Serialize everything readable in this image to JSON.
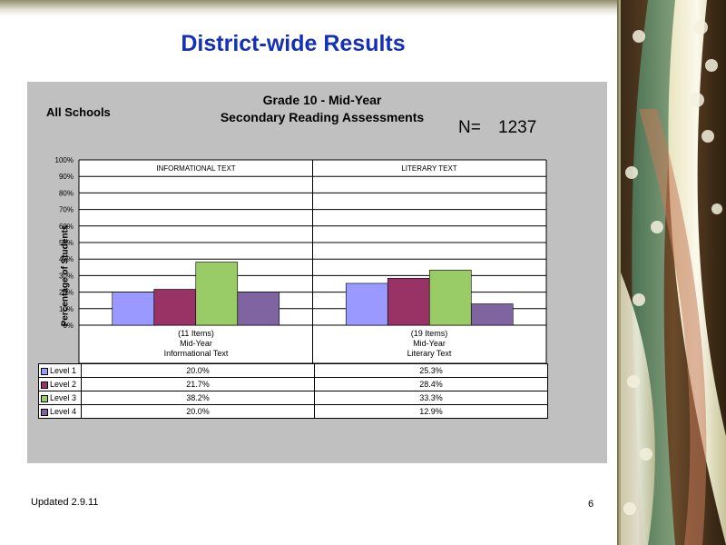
{
  "slide": {
    "title": "District-wide Results",
    "footer_updated": "Updated  2.9.11",
    "page_number": "6"
  },
  "chart_data": {
    "type": "bar",
    "title_line1": "Grade 10 - Mid-Year",
    "title_line2": "Secondary Reading Assessments",
    "school_label": "All Schools",
    "n_label": "N=",
    "n_value": "1237",
    "ylabel": "Percentage of Students",
    "ylim": [
      0,
      100
    ],
    "yticks": [
      "0%",
      "10%",
      "20%",
      "30%",
      "40%",
      "50%",
      "60%",
      "70%",
      "80%",
      "90%",
      "100%"
    ],
    "grid": true,
    "category_headers": [
      "INFORMATIONAL TEXT",
      "LITERARY TEXT"
    ],
    "categories": [
      [
        "(11 Items)",
        "Mid-Year",
        "Informational Text"
      ],
      [
        "(19 Items)",
        "Mid-Year",
        "Literary Text"
      ]
    ],
    "series": [
      {
        "name": "Level 1",
        "color": "#9999ff",
        "values": [
          20.0,
          25.3
        ],
        "labels": [
          "20.0%",
          "25.3%"
        ]
      },
      {
        "name": "Level 2",
        "color": "#993366",
        "values": [
          21.7,
          28.4
        ],
        "labels": [
          "21.7%",
          "28.4%"
        ]
      },
      {
        "name": "Level 3",
        "color": "#99cc66",
        "values": [
          38.2,
          33.3
        ],
        "labels": [
          "38.2%",
          "33.3%"
        ]
      },
      {
        "name": "Level 4",
        "color": "#8064a2",
        "values": [
          20.0,
          12.9
        ],
        "labels": [
          "20.0%",
          "12.9%"
        ]
      }
    ]
  }
}
